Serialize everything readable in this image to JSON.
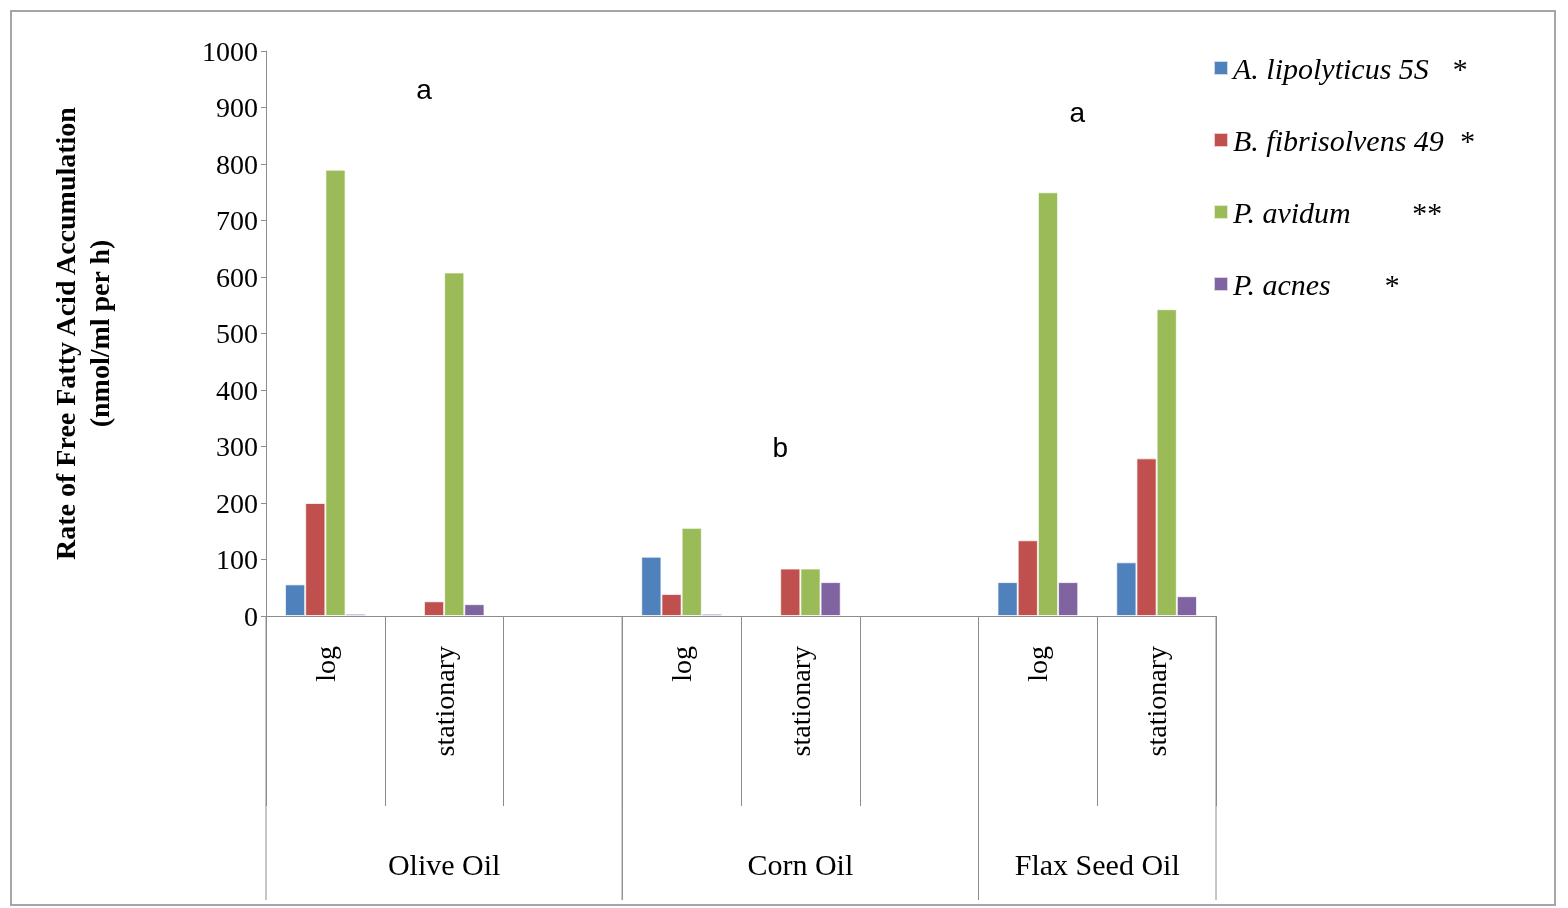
{
  "chart_data": {
    "type": "bar",
    "ylabel": "Rate of Free Fatty Acid Accumulation\n(nmol/ml per h)",
    "categories": [
      "log",
      "stationary",
      null,
      "log",
      "stationary",
      null,
      "log",
      "stationary"
    ],
    "series": [
      {
        "name": "A. lipolyticus 5S   *",
        "color": "#4f81bd",
        "values": [
          56,
          null,
          null,
          105,
          null,
          null,
          60,
          95
        ]
      },
      {
        "name": "B. fibrisolvens 49  *",
        "color": "#c0504d",
        "values": [
          200,
          26,
          null,
          39,
          84,
          null,
          134,
          279
        ]
      },
      {
        "name": "P. avidum        **",
        "color": "#9bbb59",
        "values": [
          790,
          608,
          null,
          156,
          84,
          null,
          750,
          543
        ]
      },
      {
        "name": "P. acnes       *",
        "color": "#8064a2",
        "values": [
          4,
          21,
          null,
          4,
          60,
          null,
          60,
          35
        ]
      }
    ],
    "annotations": [
      "Olive Oil",
      "Corn Oil",
      "Flax Seed Oil",
      "a",
      "b",
      "a"
    ],
    "ylim": [
      0,
      1000
    ],
    "yticks": [
      0,
      100,
      200,
      300,
      400,
      500,
      600,
      700,
      800,
      900,
      1000
    ],
    "grid": false,
    "legend": "top right"
  }
}
